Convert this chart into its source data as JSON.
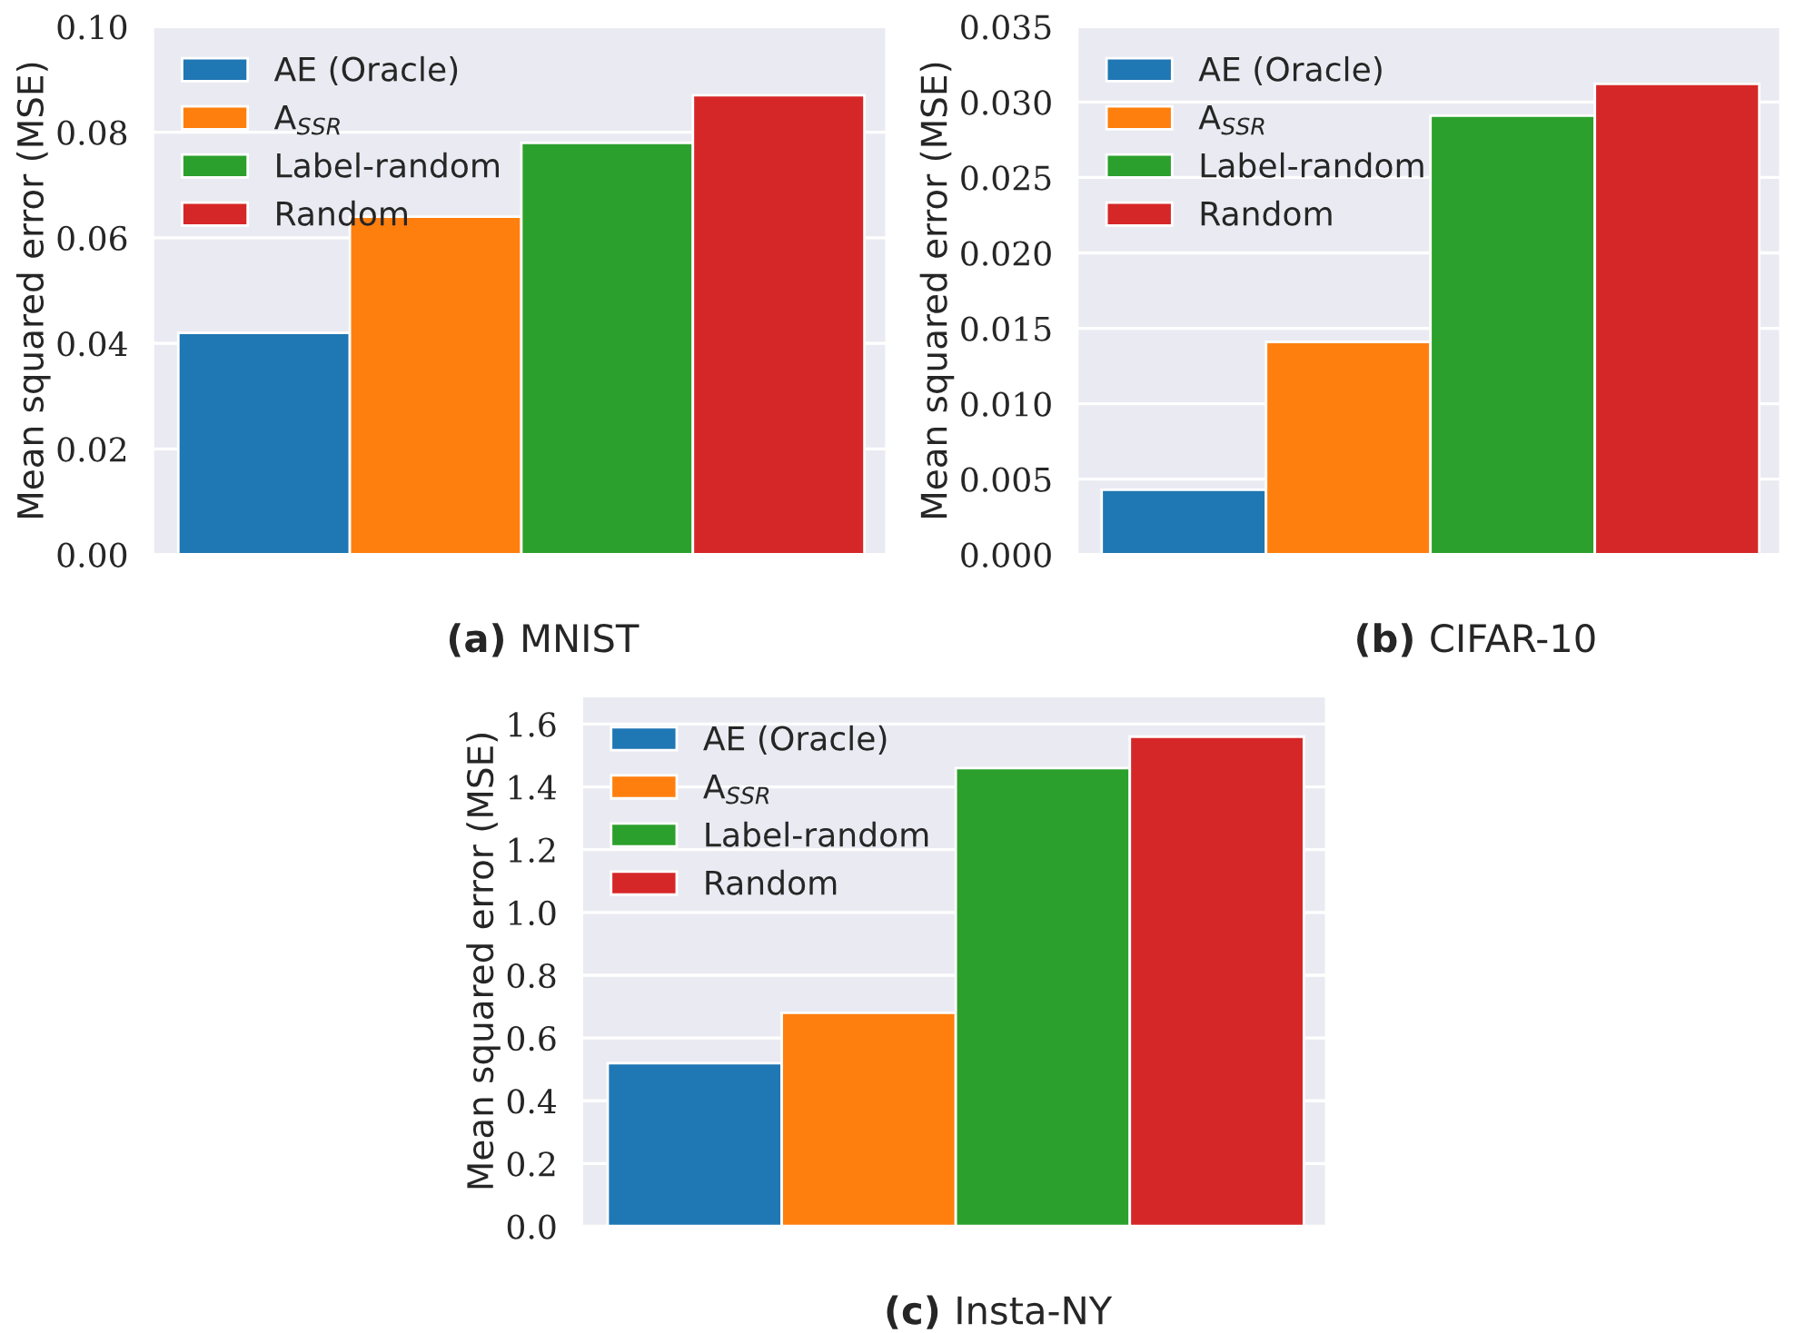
{
  "chart_data": [
    {
      "type": "bar",
      "title": "(a) MNIST",
      "ylabel": "Mean squared error (MSE)",
      "categories": [
        null,
        null,
        null,
        null
      ],
      "ylim": [
        0,
        0.1
      ],
      "yticks": [
        {
          "value": 0,
          "label": "0.00"
        },
        {
          "value": 0.02,
          "label": "0.02"
        },
        {
          "value": 0.04,
          "label": "0.04"
        },
        {
          "value": 0.06,
          "label": "0.06"
        },
        {
          "value": 0.08,
          "label": "0.08"
        },
        {
          "value": 0.1,
          "label": "0.10"
        }
      ],
      "grid": "y",
      "legend": "top left",
      "tick_labels": "y",
      "series": [
        {
          "name": "AE (Oracle)",
          "color": "#1f77b4",
          "values": [
            0.042,
            null,
            null,
            null
          ]
        },
        {
          "name": "A$_{SSR}$",
          "color": "#ff7f0e",
          "values": [
            null,
            0.064,
            null,
            null
          ]
        },
        {
          "name": "Label-random",
          "color": "#2ca02c",
          "values": [
            null,
            null,
            0.078,
            null
          ]
        },
        {
          "name": "Random",
          "color": "#d62728",
          "values": [
            null,
            null,
            null,
            0.087
          ]
        }
      ]
    },
    {
      "type": "bar",
      "title": "(b) CIFAR-10",
      "ylabel": "Mean squared error (MSE)",
      "categories": [
        null,
        null,
        null,
        null
      ],
      "ylim": [
        0,
        0.035
      ],
      "yticks": [
        {
          "value": 0,
          "label": "0.000"
        },
        {
          "value": 0.005,
          "label": "0.005"
        },
        {
          "value": 0.01,
          "label": "0.010"
        },
        {
          "value": 0.015,
          "label": "0.015"
        },
        {
          "value": 0.02,
          "label": "0.020"
        },
        {
          "value": 0.025,
          "label": "0.025"
        },
        {
          "value": 0.03,
          "label": "0.030"
        },
        {
          "value": 0.035,
          "label": "0.035"
        }
      ],
      "grid": "y",
      "legend": "top left",
      "tick_labels": "y",
      "series": [
        {
          "name": "AE (Oracle)",
          "color": "#1f77b4",
          "values": [
            0.0043,
            null,
            null,
            null
          ]
        },
        {
          "name": "A$_{SSR}$",
          "color": "#ff7f0e",
          "values": [
            null,
            0.0141,
            null,
            null
          ]
        },
        {
          "name": "Label-random",
          "color": "#2ca02c",
          "values": [
            null,
            null,
            0.0291,
            null
          ]
        },
        {
          "name": "Random",
          "color": "#d62728",
          "values": [
            null,
            null,
            null,
            0.0312
          ]
        }
      ]
    },
    {
      "type": "bar",
      "title": "(c) Insta-NY",
      "ylabel": "Mean squared error (MSE)",
      "categories": [
        null,
        null,
        null,
        null
      ],
      "ylim": [
        0,
        1.69
      ],
      "yticks": [
        {
          "value": 0,
          "label": "0.0"
        },
        {
          "value": 0.2,
          "label": "0.2"
        },
        {
          "value": 0.4,
          "label": "0.4"
        },
        {
          "value": 0.6,
          "label": "0.6"
        },
        {
          "value": 0.8,
          "label": "0.8"
        },
        {
          "value": 1.0,
          "label": "1.0"
        },
        {
          "value": 1.2,
          "label": "1.2"
        },
        {
          "value": 1.4,
          "label": "1.4"
        },
        {
          "value": 1.6,
          "label": "1.6"
        }
      ],
      "grid": "y",
      "legend": "top left",
      "tick_labels": "y",
      "series": [
        {
          "name": "AE (Oracle)",
          "color": "#1f77b4",
          "values": [
            0.52,
            null,
            null,
            null
          ]
        },
        {
          "name": "A$_{SSR}$",
          "color": "#ff7f0e",
          "values": [
            null,
            0.68,
            null,
            null
          ]
        },
        {
          "name": "Label-random",
          "color": "#2ca02c",
          "values": [
            null,
            null,
            1.46,
            null
          ]
        },
        {
          "name": "Random",
          "color": "#d62728",
          "values": [
            null,
            null,
            null,
            1.56
          ]
        }
      ]
    }
  ]
}
